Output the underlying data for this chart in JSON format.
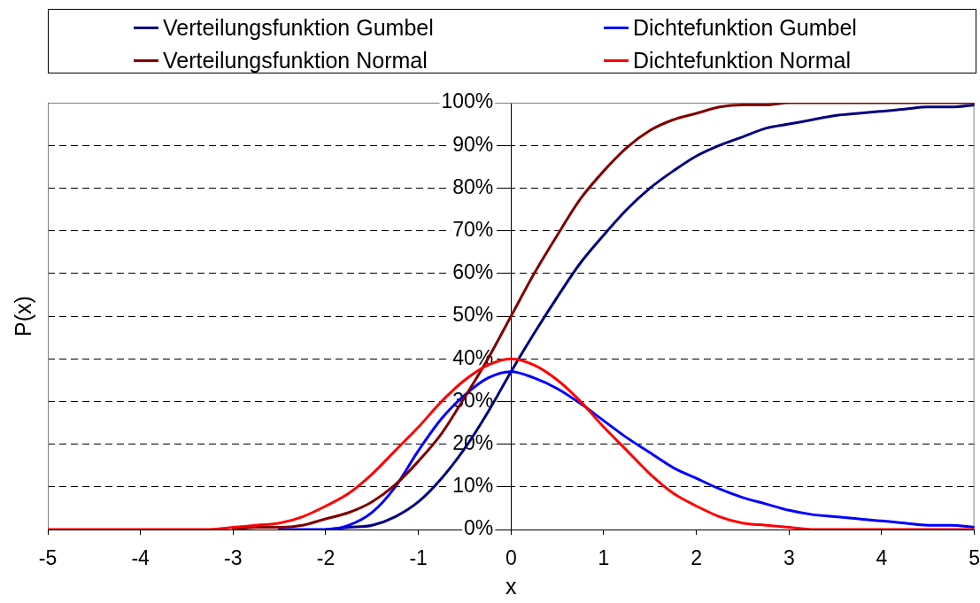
{
  "chart_data": {
    "type": "line",
    "xlabel": "x",
    "ylabel": "P(x)",
    "x": [
      -5,
      -4.75,
      -4.5,
      -4.25,
      -4,
      -3.75,
      -3.5,
      -3.25,
      -3,
      -2.75,
      -2.5,
      -2.25,
      -2,
      -1.75,
      -1.5,
      -1.25,
      -1,
      -0.75,
      -0.5,
      -0.25,
      0,
      0.25,
      0.5,
      0.75,
      1,
      1.25,
      1.5,
      1.75,
      2,
      2.25,
      2.5,
      2.75,
      3,
      3.25,
      3.5,
      3.75,
      4,
      4.25,
      4.5,
      4.75,
      5
    ],
    "series": [
      {
        "name": "Verteilungsfunktion Gumbel",
        "color": "#000080",
        "values": [
          null,
          null,
          null,
          null,
          null,
          null,
          null,
          null,
          null,
          null,
          null,
          null,
          0,
          0.5,
          1,
          3,
          6.5,
          12,
          19,
          27.5,
          37,
          46,
          54.5,
          62.5,
          69,
          75,
          80,
          84,
          87.5,
          90,
          92,
          94,
          95,
          96,
          97,
          97.5,
          98,
          98.5,
          99,
          99,
          99.5
        ]
      },
      {
        "name": "Dichtefunktion Gumbel",
        "color": "#0000ff",
        "values": [
          null,
          null,
          null,
          null,
          null,
          null,
          null,
          null,
          null,
          null,
          0,
          0,
          0,
          1,
          4,
          10,
          18.5,
          26,
          31.5,
          35.5,
          37,
          35.5,
          33,
          29.5,
          25.5,
          21.5,
          18,
          14.5,
          12,
          9.5,
          7.5,
          6,
          4.5,
          3.5,
          3,
          2.5,
          2,
          1.5,
          1,
          1,
          0.5
        ]
      },
      {
        "name": "Verteilungsfunktion Normal",
        "color": "#800000",
        "values": [
          null,
          null,
          null,
          null,
          null,
          null,
          null,
          null,
          0,
          0.5,
          0.5,
          1,
          2.5,
          4,
          6.5,
          10.5,
          16,
          22.5,
          31,
          40,
          50,
          60,
          69,
          77.5,
          84,
          89.5,
          93.5,
          96,
          97.5,
          99,
          99.5,
          99.5,
          100,
          100,
          100,
          100,
          100,
          100,
          100,
          100,
          100
        ]
      },
      {
        "name": "Dichtefunktion Normal",
        "color": "#ff0000",
        "values": [
          0,
          0,
          0,
          0,
          0,
          0,
          0,
          0,
          0.5,
          1,
          1.5,
          3,
          5.5,
          8.5,
          13,
          18.5,
          24,
          30,
          35,
          38.5,
          40,
          38.5,
          35,
          30,
          24,
          18.5,
          13,
          8.5,
          5.5,
          3,
          1.5,
          1,
          0.5,
          0,
          0,
          0,
          0,
          0,
          0,
          0,
          0
        ]
      }
    ],
    "xlim": [
      -5,
      5
    ],
    "xticks": [
      -5,
      -4,
      -3,
      -2,
      -1,
      0,
      1,
      2,
      3,
      4,
      5
    ],
    "ylim": [
      0,
      100
    ],
    "yticks": [
      {
        "value": 0,
        "label": "0%"
      },
      {
        "value": 10,
        "label": "10%"
      },
      {
        "value": 20,
        "label": "20%"
      },
      {
        "value": 30,
        "label": "30%"
      },
      {
        "value": 40,
        "label": "40%"
      },
      {
        "value": 50,
        "label": "50%"
      },
      {
        "value": 60,
        "label": "60%"
      },
      {
        "value": 70,
        "label": "70%"
      },
      {
        "value": 80,
        "label": "80%"
      },
      {
        "value": 90,
        "label": "90%"
      },
      {
        "value": 100,
        "label": "100%"
      }
    ],
    "grid": "y",
    "legend": "top",
    "marker": "none",
    "line_style": "solid"
  }
}
